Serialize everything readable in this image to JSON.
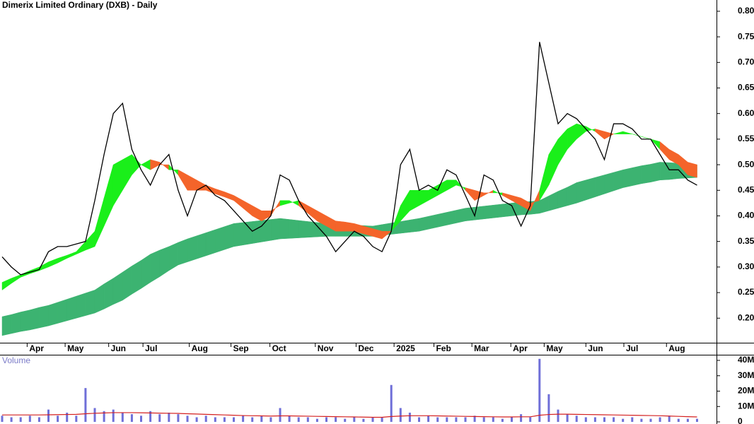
{
  "chart_data": [
    {
      "type": "line",
      "title": "Dimerix Limited Ordinary (DXB) - Daily",
      "xlim": [
        -0.23,
        77.1
      ],
      "xticks": [
        {
          "value": 2.7,
          "label": "Apr"
        },
        {
          "value": 6.8,
          "label": "May"
        },
        {
          "value": 11.5,
          "label": "Jun"
        },
        {
          "value": 15.2,
          "label": "Jul"
        },
        {
          "value": 20.2,
          "label": "Aug"
        },
        {
          "value": 24.7,
          "label": "Sep"
        },
        {
          "value": 28.9,
          "label": "Oct"
        },
        {
          "value": 33.8,
          "label": "Nov"
        },
        {
          "value": 38.2,
          "label": "Dec"
        },
        {
          "value": 42.3,
          "label": "2025"
        },
        {
          "value": 46.6,
          "label": "Feb"
        },
        {
          "value": 50.7,
          "label": "Mar"
        },
        {
          "value": 54.9,
          "label": "Apr"
        },
        {
          "value": 58.5,
          "label": "May"
        },
        {
          "value": 63,
          "label": "Jun"
        },
        {
          "value": 67.1,
          "label": "Jul"
        },
        {
          "value": 71.7,
          "label": "Aug"
        }
      ],
      "ylim": [
        0.152,
        0.822
      ],
      "yticks": [
        {
          "value": 0.2,
          "label": "0.20"
        },
        0.25,
        {
          "value": 0.3,
          "label": "0.30"
        },
        0.35,
        {
          "value": 0.4,
          "label": "0.40"
        },
        0.45,
        {
          "value": 0.5,
          "label": "0.50"
        },
        0.55,
        {
          "value": 0.6,
          "label": "0.60"
        },
        0.65,
        {
          "value": 0.7,
          "label": "0.70"
        },
        0.75,
        {
          "value": 0.8,
          "label": "0.80"
        }
      ],
      "series": [
        {
          "color": "#000000",
          "values": [
            0.32,
            0.3,
            0.285,
            0.29,
            0.295,
            0.33,
            0.34,
            0.34,
            0.345,
            0.35,
            0.43,
            0.52,
            0.6,
            0.62,
            0.53,
            0.49,
            0.46,
            0.5,
            0.52,
            0.45,
            0.4,
            0.45,
            0.46,
            0.44,
            0.43,
            0.41,
            0.39,
            0.37,
            0.38,
            0.4,
            0.48,
            0.47,
            0.43,
            0.4,
            0.38,
            0.36,
            0.33,
            0.35,
            0.37,
            0.36,
            0.34,
            0.33,
            0.37,
            0.5,
            0.53,
            0.45,
            0.46,
            0.45,
            0.49,
            0.48,
            0.44,
            0.4,
            0.48,
            0.47,
            0.43,
            0.42,
            0.38,
            0.42,
            0.74,
            0.66,
            0.58,
            0.6,
            0.59,
            0.57,
            0.55,
            0.51,
            0.58,
            0.58,
            0.57,
            0.55,
            0.55,
            0.52,
            0.49,
            0.49,
            0.47,
            0.46
          ]
        },
        {
          "color": "#1aef1a",
          "values": [
            0.27,
            0.278,
            0.285,
            0.293,
            0.3,
            0.31,
            0.317,
            0.323,
            0.33,
            0.35,
            0.37,
            0.435,
            0.5,
            0.51,
            0.52,
            0.5,
            0.49,
            0.5,
            0.5,
            0.48,
            0.45,
            0.45,
            0.45,
            0.443,
            0.437,
            0.43,
            0.415,
            0.4,
            0.39,
            0.4,
            0.43,
            0.43,
            0.42,
            0.405,
            0.39,
            0.38,
            0.37,
            0.37,
            0.37,
            0.365,
            0.36,
            0.355,
            0.37,
            0.42,
            0.45,
            0.45,
            0.45,
            0.46,
            0.47,
            0.47,
            0.45,
            0.43,
            0.44,
            0.45,
            0.44,
            0.43,
            0.42,
            0.41,
            0.45,
            0.52,
            0.55,
            0.57,
            0.58,
            0.575,
            0.565,
            0.55,
            0.56,
            0.565,
            0.56,
            0.555,
            0.55,
            0.53,
            0.51,
            0.5,
            0.48,
            0.475
          ]
        },
        {
          "color": "#f4642a",
          "values": [
            0.255,
            0.268,
            0.28,
            0.287,
            0.293,
            0.3,
            0.308,
            0.317,
            0.325,
            0.333,
            0.34,
            0.38,
            0.42,
            0.45,
            0.48,
            0.5,
            0.51,
            0.505,
            0.49,
            0.49,
            0.48,
            0.47,
            0.46,
            0.453,
            0.447,
            0.44,
            0.43,
            0.42,
            0.41,
            0.41,
            0.42,
            0.425,
            0.43,
            0.42,
            0.41,
            0.4,
            0.39,
            0.388,
            0.385,
            0.38,
            0.375,
            0.37,
            0.37,
            0.39,
            0.41,
            0.42,
            0.43,
            0.44,
            0.45,
            0.46,
            0.455,
            0.45,
            0.445,
            0.445,
            0.445,
            0.44,
            0.435,
            0.425,
            0.43,
            0.46,
            0.5,
            0.53,
            0.55,
            0.565,
            0.57,
            0.565,
            0.56,
            0.56,
            0.56,
            0.555,
            0.55,
            0.545,
            0.53,
            0.52,
            0.505,
            0.5
          ]
        },
        {
          "color": "#3cb371",
          "values": [
            0.203,
            0.207,
            0.212,
            0.216,
            0.221,
            0.225,
            0.231,
            0.237,
            0.243,
            0.249,
            0.255,
            0.267,
            0.278,
            0.29,
            0.302,
            0.313,
            0.325,
            0.333,
            0.34,
            0.348,
            0.355,
            0.361,
            0.367,
            0.373,
            0.379,
            0.385,
            0.387,
            0.389,
            0.391,
            0.393,
            0.395,
            0.393,
            0.391,
            0.389,
            0.387,
            0.385,
            0.384,
            0.383,
            0.382,
            0.381,
            0.38,
            0.383,
            0.386,
            0.389,
            0.392,
            0.395,
            0.399,
            0.403,
            0.407,
            0.411,
            0.415,
            0.417,
            0.419,
            0.421,
            0.423,
            0.425,
            0.427,
            0.428,
            0.43,
            0.439,
            0.448,
            0.456,
            0.465,
            0.47,
            0.475,
            0.48,
            0.485,
            0.49,
            0.494,
            0.498,
            0.501,
            0.505,
            0.504,
            0.503,
            0.501,
            0.5
          ]
        },
        {
          "color": "#3cb371",
          "values": [
            0.166,
            0.17,
            0.174,
            0.177,
            0.181,
            0.185,
            0.19,
            0.195,
            0.2,
            0.205,
            0.21,
            0.218,
            0.227,
            0.235,
            0.247,
            0.258,
            0.27,
            0.281,
            0.293,
            0.304,
            0.31,
            0.316,
            0.322,
            0.328,
            0.334,
            0.34,
            0.343,
            0.346,
            0.349,
            0.352,
            0.355,
            0.356,
            0.357,
            0.358,
            0.359,
            0.36,
            0.36,
            0.36,
            0.36,
            0.36,
            0.36,
            0.362,
            0.364,
            0.366,
            0.368,
            0.37,
            0.374,
            0.378,
            0.382,
            0.386,
            0.39,
            0.392,
            0.394,
            0.396,
            0.398,
            0.4,
            0.402,
            0.403,
            0.405,
            0.41,
            0.415,
            0.42,
            0.425,
            0.431,
            0.437,
            0.443,
            0.449,
            0.455,
            0.459,
            0.463,
            0.466,
            0.47,
            0.471,
            0.473,
            0.474,
            0.475
          ]
        }
      ]
    },
    {
      "type": "bar",
      "title": "Volume",
      "xlim": [
        -0.23,
        77.1
      ],
      "ylim": [
        0,
        43200000
      ],
      "yticks": [
        0,
        {
          "value": 10000000,
          "label": "10M"
        },
        {
          "value": 20000000,
          "label": "20M"
        },
        {
          "value": 30000000,
          "label": "30M"
        },
        {
          "value": 40000000,
          "label": "40M"
        }
      ],
      "series": [
        {
          "color": "#6f6fd8",
          "values": [
            4000000,
            3000000,
            3000000,
            4000000,
            3000000,
            8000000,
            4000000,
            6000000,
            4000000,
            22000000,
            9000000,
            7000000,
            8000000,
            6000000,
            5000000,
            4000000,
            7000000,
            5000000,
            6000000,
            5000000,
            4000000,
            3000000,
            4000000,
            3000000,
            3000000,
            3000000,
            4000000,
            3000000,
            4000000,
            3000000,
            9000000,
            4000000,
            3000000,
            3000000,
            2000000,
            3000000,
            3000000,
            2000000,
            3000000,
            2000000,
            3000000,
            3000000,
            24000000,
            9000000,
            6000000,
            3000000,
            4000000,
            3000000,
            3000000,
            3000000,
            3000000,
            4000000,
            3000000,
            3000000,
            2000000,
            3000000,
            5000000,
            3000000,
            41000000,
            18000000,
            8000000,
            5000000,
            4000000,
            3000000,
            3000000,
            3000000,
            3000000,
            2000000,
            3000000,
            2000000,
            2000000,
            3000000,
            4000000,
            2000000,
            2000000,
            2000000
          ]
        },
        {
          "color": "#d42020",
          "values": [
            4500000,
            4500000,
            4500000,
            4500000,
            4500000,
            4600000,
            4700000,
            4800000,
            4900000,
            5300000,
            5600000,
            5800000,
            6000000,
            6000000,
            6000000,
            5900000,
            5800000,
            5700000,
            5600000,
            5500000,
            5300000,
            5100000,
            4900000,
            4700000,
            4500000,
            4300000,
            4100000,
            4000000,
            3900000,
            3800000,
            3900000,
            3900000,
            3800000,
            3700000,
            3600000,
            3500000,
            3400000,
            3300000,
            3200000,
            3100000,
            3000000,
            3000000,
            3500000,
            3800000,
            4000000,
            4000000,
            4000000,
            3900000,
            3800000,
            3700000,
            3600000,
            3500000,
            3400000,
            3300000,
            3200000,
            3200000,
            3300000,
            3300000,
            4300000,
            4800000,
            5000000,
            5000000,
            4900000,
            4800000,
            4700000,
            4600000,
            4500000,
            4400000,
            4300000,
            4200000,
            4100000,
            4000000,
            3800000,
            3600000,
            3400000,
            3200000
          ]
        }
      ]
    }
  ]
}
